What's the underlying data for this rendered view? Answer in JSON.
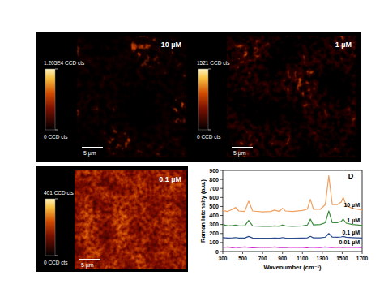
{
  "panels": [
    {
      "label": "10 µM",
      "scale_bar": "5 µm",
      "colorbar": {
        "range": [
          0,
          12050
        ],
        "ticks": [
          {
            "value": 0,
            "label": "0 CCD cts"
          },
          {
            "value": 12050,
            "label": "1.205E4 CCD cts"
          }
        ]
      }
    },
    {
      "label": "1 µM",
      "scale_bar": "5 µm",
      "colorbar": {
        "range": [
          0,
          1521
        ],
        "ticks": [
          {
            "value": 0,
            "label": "0 CCD cts"
          },
          {
            "value": 1521,
            "label": "1521 CCD cts"
          }
        ]
      }
    },
    {
      "label": "0.1 µM",
      "scale_bar": "5 µm",
      "colorbar": {
        "range": [
          0,
          401
        ],
        "ticks": [
          {
            "value": 0,
            "label": "0 CCD cts"
          },
          {
            "value": 401,
            "label": "401 CCD cts"
          }
        ]
      }
    }
  ],
  "chart_data": {
    "type": "line",
    "title": "D",
    "x_label": "Wavenumber (cm⁻¹)",
    "y_label": "Raman Intensity (a.u.)",
    "x": [
      300,
      350,
      400,
      430,
      460,
      520,
      560,
      600,
      700,
      780,
      820,
      870,
      900,
      930,
      1000,
      1100,
      1150,
      1180,
      1210,
      1280,
      1330,
      1365,
      1400,
      1450,
      1490,
      1510,
      1540,
      1600,
      1650,
      1700
    ],
    "series": [
      {
        "name": "10 µM",
        "color": "#f0a060",
        "values": [
          455,
          445,
          470,
          490,
          450,
          445,
          560,
          450,
          440,
          445,
          460,
          445,
          480,
          450,
          445,
          455,
          470,
          580,
          470,
          470,
          520,
          840,
          520,
          520,
          550,
          600,
          510,
          480,
          470,
          460
        ]
      },
      {
        "name": "1 µM",
        "color": "#3c8c3c",
        "values": [
          300,
          285,
          290,
          295,
          285,
          285,
          345,
          285,
          280,
          280,
          285,
          280,
          295,
          285,
          280,
          285,
          295,
          360,
          295,
          300,
          320,
          450,
          320,
          320,
          335,
          360,
          315,
          300,
          295,
          290
        ]
      },
      {
        "name": "0.1 µM",
        "color": "#2b4a8c",
        "values": [
          155,
          150,
          152,
          155,
          150,
          150,
          168,
          150,
          148,
          148,
          150,
          148,
          155,
          150,
          148,
          150,
          152,
          168,
          152,
          152,
          160,
          200,
          160,
          158,
          162,
          168,
          158,
          155,
          152,
          150
        ]
      },
      {
        "name": "0.01 µM",
        "color": "#d020d0",
        "values": [
          45,
          50,
          42,
          48,
          44,
          50,
          46,
          42,
          48,
          45,
          50,
          43,
          47,
          44,
          49,
          45,
          42,
          48,
          46,
          44,
          50,
          45,
          43,
          48,
          46,
          44,
          49,
          45,
          47,
          44
        ]
      }
    ],
    "xlim": [
      300,
      1700
    ],
    "ylim": [
      0,
      900
    ],
    "xticks": [
      300,
      500,
      700,
      900,
      1100,
      1300,
      1500,
      1700
    ],
    "yticks": [
      0,
      100,
      200,
      300,
      400,
      500,
      600,
      700,
      800,
      900
    ]
  }
}
